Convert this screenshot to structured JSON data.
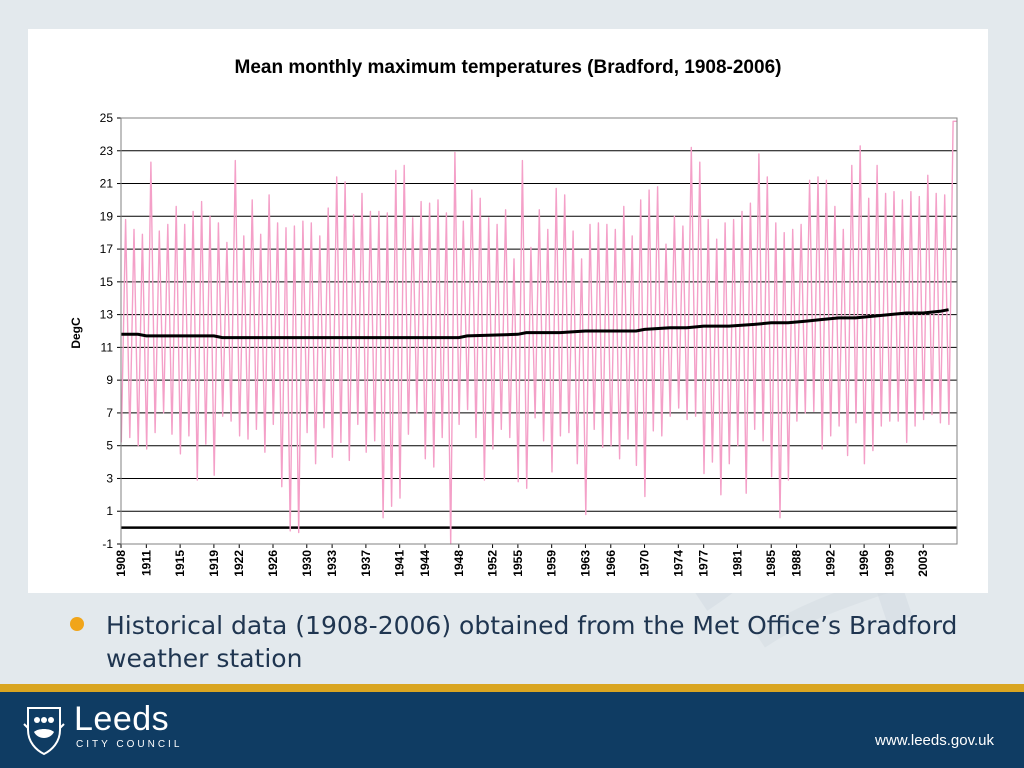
{
  "slide": {
    "bullet_text": "Historical data (1908-2006) obtained from the Met Office’s Bradford weather station"
  },
  "footer": {
    "logo_name": "Leeds",
    "logo_subtitle": "CITY COUNCIL",
    "url": "www.leeds.gov.uk"
  },
  "colors": {
    "background": "#e3e9ed",
    "series_pink": "#f4a0c8",
    "trend": "#000000",
    "gold_bar": "#d9a521",
    "footer_blue": "#0f3c63",
    "bullet_orange": "#f1a51a",
    "bullet_text": "#1f3550"
  },
  "icons": {
    "logo": "leeds-crest-icon",
    "bullet": "bullet-dot-icon"
  },
  "chart_data": {
    "type": "line",
    "title": "Mean monthly maximum temperatures (Bradford, 1908-2006)",
    "xlabel": "",
    "ylabel": "DegC",
    "xlim": [
      1908,
      2007
    ],
    "ylim": [
      -1,
      25
    ],
    "yticks": [
      -1,
      1,
      3,
      5,
      7,
      9,
      11,
      13,
      15,
      17,
      19,
      21,
      23,
      25
    ],
    "xtick_labels": [
      "1908",
      "1911",
      "1915",
      "1919",
      "1922",
      "1926",
      "1930",
      "1933",
      "1937",
      "1941",
      "1944",
      "1948",
      "1952",
      "1955",
      "1959",
      "1963",
      "1966",
      "1970",
      "1974",
      "1977",
      "1981",
      "1985",
      "1988",
      "1992",
      "1996",
      "1999",
      "2003"
    ],
    "grid": "horizontal",
    "legend": "none",
    "zero_line": 0,
    "series": [
      {
        "name": "",
        "style": "pink-line",
        "description_points": "annual peak (July) and trough (January) monthly maxima, one pair per year 1908-2006",
        "years": [
          1908,
          1909,
          1910,
          1911,
          1912,
          1913,
          1914,
          1915,
          1916,
          1917,
          1918,
          1919,
          1920,
          1921,
          1922,
          1923,
          1924,
          1925,
          1926,
          1927,
          1928,
          1929,
          1930,
          1931,
          1932,
          1933,
          1934,
          1935,
          1936,
          1937,
          1938,
          1939,
          1940,
          1941,
          1942,
          1943,
          1944,
          1945,
          1946,
          1947,
          1948,
          1949,
          1950,
          1951,
          1952,
          1953,
          1954,
          1955,
          1956,
          1957,
          1958,
          1959,
          1960,
          1961,
          1962,
          1963,
          1964,
          1965,
          1966,
          1967,
          1968,
          1969,
          1970,
          1971,
          1972,
          1973,
          1974,
          1975,
          1976,
          1977,
          1978,
          1979,
          1980,
          1981,
          1982,
          1983,
          1984,
          1985,
          1986,
          1987,
          1988,
          1989,
          1990,
          1991,
          1992,
          1993,
          1994,
          1995,
          1996,
          1997,
          1998,
          1999,
          2000,
          2001,
          2002,
          2003,
          2004,
          2005,
          2006
        ],
        "peaks": [
          18.8,
          18.2,
          17.9,
          22.3,
          18.1,
          18.5,
          19.6,
          18.5,
          19.3,
          19.9,
          19.0,
          18.6,
          17.4,
          22.4,
          17.8,
          20.0,
          17.9,
          20.3,
          18.6,
          18.3,
          18.4,
          18.7,
          18.6,
          17.8,
          19.5,
          21.4,
          21.1,
          19.1,
          20.4,
          19.3,
          19.3,
          19.2,
          21.8,
          22.1,
          18.9,
          19.9,
          19.8,
          20.0,
          19.2,
          22.9,
          18.7,
          20.6,
          20.1,
          18.9,
          18.5,
          19.4,
          16.4,
          22.4,
          17.1,
          19.4,
          18.2,
          20.7,
          20.3,
          18.1,
          16.4,
          18.5,
          18.6,
          18.5,
          18.2,
          19.6,
          17.8,
          20.0,
          20.6,
          20.8,
          17.3,
          19.0,
          18.4,
          23.2,
          22.3,
          18.8,
          17.6,
          18.6,
          18.8,
          19.3,
          19.8,
          22.8,
          21.4,
          18.6,
          18.0,
          18.2,
          18.5,
          21.2,
          21.4,
          21.2,
          19.6,
          18.2,
          22.1,
          23.3,
          20.1,
          22.1,
          20.4,
          20.5,
          20.0,
          20.5,
          20.2,
          21.5,
          20.4,
          20.3,
          24.8
        ],
        "troughs": [
          5.2,
          5.5,
          5.0,
          4.8,
          5.8,
          7.0,
          5.7,
          4.5,
          5.6,
          2.9,
          5.1,
          3.2,
          6.8,
          6.5,
          5.6,
          5.4,
          6.0,
          4.6,
          6.3,
          2.5,
          -0.2,
          -0.3,
          5.8,
          3.9,
          6.1,
          4.3,
          5.2,
          4.1,
          6.3,
          4.6,
          5.3,
          0.6,
          1.3,
          1.8,
          5.7,
          7.0,
          4.2,
          3.7,
          5.5,
          -1.0,
          6.3,
          7.2,
          5.5,
          2.9,
          4.8,
          6.0,
          5.5,
          2.8,
          2.4,
          6.7,
          5.3,
          3.4,
          5.6,
          5.8,
          3.9,
          0.8,
          6.0,
          4.9,
          5.0,
          4.2,
          5.4,
          3.8,
          1.9,
          5.9,
          5.6,
          6.8,
          7.3,
          6.6,
          6.8,
          3.3,
          4.0,
          2.0,
          3.9,
          5.0,
          2.1,
          6.0,
          5.3,
          3.1,
          0.6,
          2.9,
          6.5,
          7.0,
          7.1,
          4.8,
          5.6,
          6.2,
          4.4,
          6.4,
          3.9,
          4.7,
          6.2,
          6.5,
          6.5,
          5.2,
          6.2,
          6.6,
          6.9,
          6.4,
          6.3
        ]
      },
      {
        "name": "",
        "style": "black-trend",
        "x": [
          1908,
          1910,
          1911,
          1915,
          1916,
          1919,
          1920,
          1925,
          1930,
          1935,
          1940,
          1945,
          1948,
          1949,
          1955,
          1956,
          1960,
          1963,
          1965,
          1969,
          1970,
          1973,
          1975,
          1977,
          1980,
          1983,
          1985,
          1987,
          1989,
          1991,
          1993,
          1995,
          1997,
          1999,
          2001,
          2003,
          2005,
          2006
        ],
        "y": [
          11.8,
          11.8,
          11.7,
          11.7,
          11.7,
          11.7,
          11.6,
          11.6,
          11.6,
          11.6,
          11.6,
          11.6,
          11.6,
          11.7,
          11.8,
          11.9,
          11.9,
          12.0,
          12.0,
          12.0,
          12.1,
          12.2,
          12.2,
          12.3,
          12.3,
          12.4,
          12.5,
          12.5,
          12.6,
          12.7,
          12.8,
          12.8,
          12.9,
          13.0,
          13.1,
          13.1,
          13.2,
          13.3
        ]
      }
    ]
  }
}
